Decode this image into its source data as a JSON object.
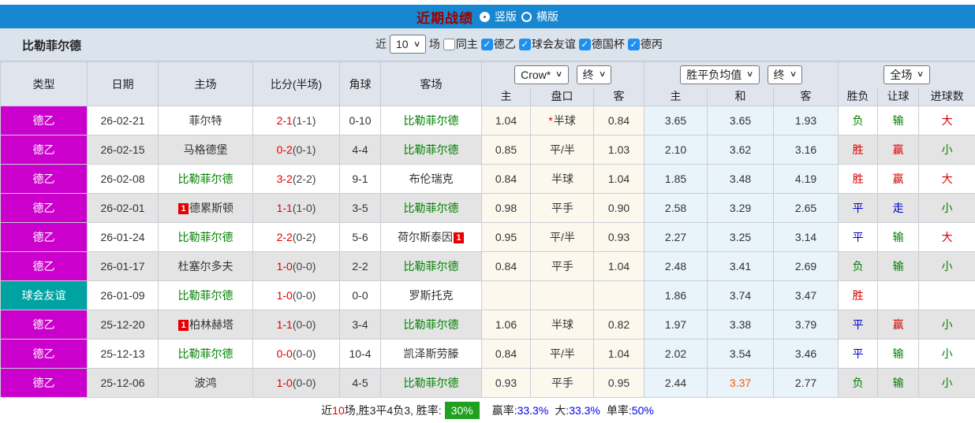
{
  "title_bar": {
    "title": "近期战绩",
    "radio_vertical": "竖版",
    "radio_horizontal": "横版"
  },
  "filter_bar": {
    "team_name": "比勒菲尔德",
    "recent_label": "近",
    "count_value": "10",
    "matches_label": "场",
    "checkboxes": [
      {
        "label": "同主",
        "checked": false
      },
      {
        "label": "德乙",
        "checked": true
      },
      {
        "label": "球会友谊",
        "checked": true
      },
      {
        "label": "德国杯",
        "checked": true
      },
      {
        "label": "德丙",
        "checked": true
      }
    ]
  },
  "table": {
    "main_headers": [
      "类型",
      "日期",
      "主场",
      "比分(半场)",
      "角球",
      "客场"
    ],
    "handicap_company_select": "Crow*",
    "handicap_final_select": "终",
    "odds_company_select": "胜平负均值",
    "odds_final_select": "终",
    "fullmatch_select": "全场",
    "sub_headers": [
      "主",
      "盘口",
      "客",
      "主",
      "和",
      "客",
      "胜负",
      "让球",
      "进球数"
    ],
    "rows": [
      {
        "type": {
          "text": "德乙",
          "color": "#CC00CC"
        },
        "date": "26-02-21",
        "home": {
          "badge": "",
          "text": "菲尔特",
          "self": false
        },
        "score": {
          "ft": "2-1",
          "ht": "(1-1)"
        },
        "corner": "0-10",
        "away": {
          "badge": "",
          "text": "比勒菲尔德",
          "self": true
        },
        "ah": {
          "home": "1.04",
          "star": true,
          "line": "半球",
          "away": "0.84"
        },
        "od": {
          "home": "3.65",
          "draw": "3.65",
          "away": "1.93",
          "hot": false
        },
        "res": {
          "text": "负",
          "cls": "g"
        },
        "cover": {
          "text": "输",
          "cls": "g"
        },
        "goal": {
          "text": "大",
          "cls": "r"
        }
      },
      {
        "type": {
          "text": "德乙",
          "color": "#CC00CC"
        },
        "date": "26-02-15",
        "home": {
          "badge": "",
          "text": "马格德堡",
          "self": false
        },
        "score": {
          "ft": "0-2",
          "ht": "(0-1)"
        },
        "corner": "4-4",
        "away": {
          "badge": "",
          "text": "比勒菲尔德",
          "self": true
        },
        "ah": {
          "home": "0.85",
          "star": false,
          "line": "平/半",
          "away": "1.03"
        },
        "od": {
          "home": "2.10",
          "draw": "3.62",
          "away": "3.16",
          "hot": false
        },
        "res": {
          "text": "胜",
          "cls": "r"
        },
        "cover": {
          "text": "赢",
          "cls": "r"
        },
        "goal": {
          "text": "小",
          "cls": "g"
        }
      },
      {
        "type": {
          "text": "德乙",
          "color": "#CC00CC"
        },
        "date": "26-02-08",
        "home": {
          "badge": "",
          "text": "比勒菲尔德",
          "self": true
        },
        "score": {
          "ft": "3-2",
          "ht": "(2-2)"
        },
        "corner": "9-1",
        "away": {
          "badge": "",
          "text": "布伦瑞克",
          "self": false
        },
        "ah": {
          "home": "0.84",
          "star": false,
          "line": "半球",
          "away": "1.04"
        },
        "od": {
          "home": "1.85",
          "draw": "3.48",
          "away": "4.19",
          "hot": false
        },
        "res": {
          "text": "胜",
          "cls": "r"
        },
        "cover": {
          "text": "赢",
          "cls": "r"
        },
        "goal": {
          "text": "大",
          "cls": "r"
        }
      },
      {
        "type": {
          "text": "德乙",
          "color": "#CC00CC"
        },
        "date": "26-02-01",
        "home": {
          "badge": "1",
          "text": "德累斯顿",
          "self": false
        },
        "score": {
          "ft": "1-1",
          "ht": "(1-0)"
        },
        "corner": "3-5",
        "away": {
          "badge": "",
          "text": "比勒菲尔德",
          "self": true
        },
        "ah": {
          "home": "0.98",
          "star": false,
          "line": "平手",
          "away": "0.90"
        },
        "od": {
          "home": "2.58",
          "draw": "3.29",
          "away": "2.65",
          "hot": false
        },
        "res": {
          "text": "平",
          "cls": "b"
        },
        "cover": {
          "text": "走",
          "cls": "b"
        },
        "goal": {
          "text": "小",
          "cls": "g"
        }
      },
      {
        "type": {
          "text": "德乙",
          "color": "#CC00CC"
        },
        "date": "26-01-24",
        "home": {
          "badge": "",
          "text": "比勒菲尔德",
          "self": true
        },
        "score": {
          "ft": "2-2",
          "ht": "(0-2)"
        },
        "corner": "5-6",
        "away": {
          "badge": "1",
          "text": "荷尔斯泰因",
          "self": false
        },
        "ah": {
          "home": "0.95",
          "star": false,
          "line": "平/半",
          "away": "0.93"
        },
        "od": {
          "home": "2.27",
          "draw": "3.25",
          "away": "3.14",
          "hot": false
        },
        "res": {
          "text": "平",
          "cls": "b"
        },
        "cover": {
          "text": "输",
          "cls": "g"
        },
        "goal": {
          "text": "大",
          "cls": "r"
        }
      },
      {
        "type": {
          "text": "德乙",
          "color": "#CC00CC"
        },
        "date": "26-01-17",
        "home": {
          "badge": "",
          "text": "杜塞尔多夫",
          "self": false
        },
        "score": {
          "ft": "1-0",
          "ht": "(0-0)"
        },
        "corner": "2-2",
        "away": {
          "badge": "",
          "text": "比勒菲尔德",
          "self": true
        },
        "ah": {
          "home": "0.84",
          "star": false,
          "line": "平手",
          "away": "1.04"
        },
        "od": {
          "home": "2.48",
          "draw": "3.41",
          "away": "2.69",
          "hot": false
        },
        "res": {
          "text": "负",
          "cls": "g"
        },
        "cover": {
          "text": "输",
          "cls": "g"
        },
        "goal": {
          "text": "小",
          "cls": "g"
        }
      },
      {
        "type": {
          "text": "球会友谊",
          "color": "#00A2A2"
        },
        "date": "26-01-09",
        "home": {
          "badge": "",
          "text": "比勒菲尔德",
          "self": true
        },
        "score": {
          "ft": "1-0",
          "ht": "(0-0)"
        },
        "corner": "0-0",
        "away": {
          "badge": "",
          "text": "罗斯托克",
          "self": false
        },
        "ah": {
          "home": "",
          "star": false,
          "line": "",
          "away": ""
        },
        "od": {
          "home": "1.86",
          "draw": "3.74",
          "away": "3.47",
          "hot": false
        },
        "res": {
          "text": "胜",
          "cls": "r"
        },
        "cover": {
          "text": "",
          "cls": ""
        },
        "goal": {
          "text": "",
          "cls": ""
        }
      },
      {
        "type": {
          "text": "德乙",
          "color": "#CC00CC"
        },
        "date": "25-12-20",
        "home": {
          "badge": "1",
          "text": "柏林赫塔",
          "self": false
        },
        "score": {
          "ft": "1-1",
          "ht": "(0-0)"
        },
        "corner": "3-4",
        "away": {
          "badge": "",
          "text": "比勒菲尔德",
          "self": true
        },
        "ah": {
          "home": "1.06",
          "star": false,
          "line": "半球",
          "away": "0.82"
        },
        "od": {
          "home": "1.97",
          "draw": "3.38",
          "away": "3.79",
          "hot": false
        },
        "res": {
          "text": "平",
          "cls": "b"
        },
        "cover": {
          "text": "赢",
          "cls": "r"
        },
        "goal": {
          "text": "小",
          "cls": "g"
        }
      },
      {
        "type": {
          "text": "德乙",
          "color": "#CC00CC"
        },
        "date": "25-12-13",
        "home": {
          "badge": "",
          "text": "比勒菲尔德",
          "self": true
        },
        "score": {
          "ft": "0-0",
          "ht": "(0-0)"
        },
        "corner": "10-4",
        "away": {
          "badge": "",
          "text": "凯泽斯劳滕",
          "self": false
        },
        "ah": {
          "home": "0.84",
          "star": false,
          "line": "平/半",
          "away": "1.04"
        },
        "od": {
          "home": "2.02",
          "draw": "3.54",
          "away": "3.46",
          "hot": false
        },
        "res": {
          "text": "平",
          "cls": "b"
        },
        "cover": {
          "text": "输",
          "cls": "g"
        },
        "goal": {
          "text": "小",
          "cls": "g"
        }
      },
      {
        "type": {
          "text": "德乙",
          "color": "#CC00CC"
        },
        "date": "25-12-06",
        "home": {
          "badge": "",
          "text": "波鸿",
          "self": false
        },
        "score": {
          "ft": "1-0",
          "ht": "(0-0)"
        },
        "corner": "4-5",
        "away": {
          "badge": "",
          "text": "比勒菲尔德",
          "self": true
        },
        "ah": {
          "home": "0.93",
          "star": false,
          "line": "平手",
          "away": "0.95"
        },
        "od": {
          "home": "2.44",
          "draw": "3.37",
          "away": "2.77",
          "hot": true
        },
        "res": {
          "text": "负",
          "cls": "g"
        },
        "cover": {
          "text": "输",
          "cls": "g"
        },
        "goal": {
          "text": "小",
          "cls": "g"
        }
      }
    ]
  },
  "summary": {
    "prefix": "近",
    "count": "10",
    "mid": "场,胜3平4负3, 胜率:",
    "win_rate": "30%",
    "segments": [
      {
        "label": "赢率:",
        "value": "33.3%"
      },
      {
        "label": "大:",
        "value": "33.3%"
      },
      {
        "label": "单率:",
        "value": "50%"
      }
    ]
  }
}
